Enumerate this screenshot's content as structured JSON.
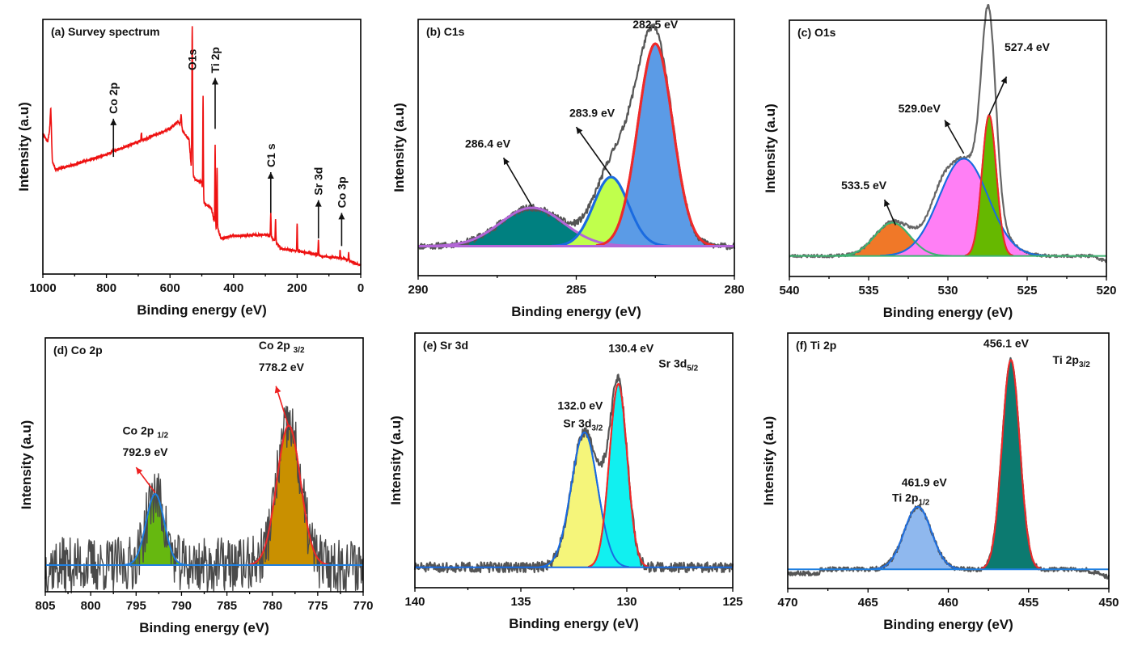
{
  "chart_data": [
    {
      "id": "a",
      "type": "line",
      "title": "(a) Survey spectrum",
      "xlabel": "Binding energy (eV)",
      "ylabel": "Intensity (a.u)",
      "xlim": [
        1000,
        0
      ],
      "ylim": [
        0,
        1
      ],
      "xticks": [
        1000,
        800,
        600,
        400,
        200,
        0
      ],
      "line_color": "#ee1111",
      "baseline_segments": [
        [
          1000,
          0.55
        ],
        [
          985,
          0.52
        ],
        [
          975,
          0.59
        ],
        [
          970,
          0.44
        ],
        [
          960,
          0.41
        ],
        [
          900,
          0.43
        ],
        [
          800,
          0.47
        ],
        [
          700,
          0.52
        ],
        [
          600,
          0.57
        ],
        [
          575,
          0.6
        ],
        [
          560,
          0.56
        ],
        [
          540,
          0.53
        ],
        [
          532,
          0.4
        ],
        [
          520,
          0.37
        ],
        [
          500,
          0.36
        ],
        [
          495,
          0.28
        ],
        [
          470,
          0.26
        ],
        [
          460,
          0.2
        ],
        [
          455,
          0.18
        ],
        [
          450,
          0.18
        ],
        [
          440,
          0.14
        ],
        [
          400,
          0.15
        ],
        [
          300,
          0.155
        ],
        [
          285,
          0.15
        ],
        [
          270,
          0.13
        ],
        [
          250,
          0.1
        ],
        [
          200,
          0.09
        ],
        [
          150,
          0.08
        ],
        [
          120,
          0.07
        ],
        [
          80,
          0.065
        ],
        [
          50,
          0.06
        ],
        [
          30,
          0.05
        ],
        [
          15,
          0.04
        ],
        [
          0,
          0.035
        ]
      ],
      "peaks": [
        {
          "x": 975,
          "height": 0.06,
          "width": 4
        },
        {
          "x": 780,
          "height": 0.01,
          "width": 3
        },
        {
          "x": 690,
          "height": 0.03,
          "width": 2
        },
        {
          "x": 565,
          "height": 0.05,
          "width": 4
        },
        {
          "x": 530,
          "height": 0.58,
          "width": 2.5
        },
        {
          "x": 496,
          "height": 0.4,
          "width": 2
        },
        {
          "x": 458,
          "height": 0.32,
          "width": 2
        },
        {
          "x": 452,
          "height": 0.24,
          "width": 2
        },
        {
          "x": 283,
          "height": 0.09,
          "width": 2
        },
        {
          "x": 268,
          "height": 0.09,
          "width": 2
        },
        {
          "x": 200,
          "height": 0.11,
          "width": 2
        },
        {
          "x": 133,
          "height": 0.06,
          "width": 2
        },
        {
          "x": 65,
          "height": 0.03,
          "width": 2
        },
        {
          "x": 38,
          "height": 0.03,
          "width": 2
        }
      ],
      "markers": [
        {
          "label": "Co 2p",
          "x": 778,
          "y_from": 0.46,
          "y_to": 0.61
        },
        {
          "label": "O1s",
          "x": 530,
          "y_from": null,
          "y_to": null,
          "text_y": 0.99
        },
        {
          "label": "Ti 2p",
          "x": 458,
          "y_from": 0.57,
          "y_to": 0.77
        },
        {
          "label": "C1 s",
          "x": 283,
          "y_from": 0.24,
          "y_to": 0.4
        },
        {
          "label": "Sr 3d",
          "x": 133,
          "y_from": 0.14,
          "y_to": 0.29
        },
        {
          "label": "Co 3p",
          "x": 60,
          "y_from": 0.11,
          "y_to": 0.24
        }
      ]
    },
    {
      "id": "b",
      "type": "area",
      "title": "(b) C1s",
      "xlabel": "Binding energy (eV)",
      "ylabel": "Intensity (a.u)",
      "xlim": [
        290,
        280
      ],
      "ylim": [
        0,
        1
      ],
      "xticks": [
        290,
        285,
        280
      ],
      "baseline": 0.115,
      "baseline_color": "#b266d6",
      "raw_envelope_color": "#555555",
      "components": [
        {
          "label": "286.4 eV",
          "center": 286.4,
          "height": 0.15,
          "sigma": 1.0,
          "fill": "#008080",
          "stroke": "#b266d6"
        },
        {
          "label": "283.9 eV",
          "center": 283.9,
          "height": 0.27,
          "sigma": 0.55,
          "fill": "#c0ff4c",
          "stroke": "#1a6be0"
        },
        {
          "label": "282.5 eV",
          "center": 282.5,
          "height": 0.79,
          "sigma": 0.55,
          "fill": "#5b9be6",
          "stroke": "#ee2a2a"
        }
      ],
      "annotations": [
        {
          "text": "286.4 eV",
          "tx": 287.8,
          "ty": 0.5,
          "ax": 286.4,
          "ay": 0.27,
          "hx": 287.3,
          "hy": 0.46
        },
        {
          "text": "283.9 eV",
          "tx": 284.5,
          "ty": 0.62,
          "ax": 283.9,
          "ay": 0.39,
          "hx": 285.0,
          "hy": 0.58
        },
        {
          "text": "282.5 eV",
          "tx": 282.5,
          "ty": 0.965
        }
      ]
    },
    {
      "id": "c",
      "type": "area",
      "title": "(c) O1s",
      "xlabel": "Binding energy (eV)",
      "ylabel": "Intensity (a.u)",
      "xlim": [
        540,
        520
      ],
      "ylim": [
        0,
        1
      ],
      "xticks": [
        540,
        535,
        530,
        525,
        520
      ],
      "baseline": 0.08,
      "baseline_color": "#3cb371",
      "raw_envelope_color": "#666666",
      "components": [
        {
          "label": "533.5 eV",
          "center": 533.5,
          "height": 0.13,
          "sigma": 1.1,
          "fill": "#f07828",
          "stroke": "#3cb371"
        },
        {
          "label": "529.0eV",
          "center": 529.0,
          "height": 0.38,
          "sigma": 1.55,
          "fill": "#ff7ff5",
          "stroke": "#1a6be0"
        },
        {
          "label": "527.4 eV",
          "center": 527.4,
          "height": 0.55,
          "sigma": 0.45,
          "fill": "#66b800",
          "stroke": "#ee2a2a"
        }
      ],
      "annotations": [
        {
          "text": "533.5 eV",
          "tx": 535.3,
          "ty": 0.34,
          "ax": 533.3,
          "ay": 0.2,
          "hx": 534.0,
          "hy": 0.3
        },
        {
          "text": "529.0eV",
          "tx": 531.8,
          "ty": 0.64,
          "ax": 529.0,
          "ay": 0.48,
          "hx": 530.2,
          "hy": 0.61
        },
        {
          "text": "527.4 eV",
          "tx": 525.0,
          "ty": 0.88,
          "ax": 527.4,
          "ay": 0.63,
          "hx": 526.3,
          "hy": 0.78
        }
      ]
    },
    {
      "id": "d",
      "type": "area",
      "title": "(d) Co 2p",
      "xlabel": "Binding energy (eV)",
      "ylabel": "Intensity (a.u)",
      "xlim": [
        805,
        770
      ],
      "ylim": [
        0,
        1
      ],
      "xticks": [
        805,
        800,
        795,
        790,
        785,
        780,
        775,
        770
      ],
      "baseline": 0.105,
      "baseline_color": "#1f7fe0",
      "raw_envelope_color": "#4a4a4a",
      "components": [
        {
          "label": "Co 2p1/2 792.9 eV",
          "center": 792.9,
          "height": 0.28,
          "sigma": 1.0,
          "fill": "#66b810",
          "stroke": "#1f7fe0"
        },
        {
          "label": "Co 2p3/2 778.2 eV",
          "center": 778.2,
          "height": 0.55,
          "sigma": 1.3,
          "fill": "#c99000",
          "stroke": "#ee2a2a"
        }
      ],
      "annotations": [
        {
          "main": "Co 2p",
          "sub": "1/2",
          "value": "792.9 eV",
          "tx": 796.5,
          "ty": 0.62,
          "ty2": 0.535,
          "ax": 792.9,
          "ay": 0.39,
          "hx": 795.0,
          "hy": 0.49,
          "arrow_color": "#ee2020"
        },
        {
          "main": "Co 2p",
          "sub": "3/2",
          "value": "778.2 eV",
          "tx": 781.5,
          "ty": 0.955,
          "ty2": 0.87,
          "ax": 778.2,
          "ay": 0.65,
          "hx": 779.6,
          "hy": 0.81,
          "arrow_color": "#ee2020"
        }
      ]
    },
    {
      "id": "e",
      "type": "area",
      "title": "(e) Sr 3d",
      "xlabel": "Binding energy (eV)",
      "ylabel": "Intensity (a.u)",
      "xlim": [
        140,
        125
      ],
      "ylim": [
        0,
        1
      ],
      "xticks": [
        140,
        135,
        130,
        125
      ],
      "baseline": 0.08,
      "baseline_color": "#1a6be0",
      "raw_envelope_color": "#555555",
      "components": [
        {
          "label": "132.0 eV Sr 3d3/2",
          "center": 132.0,
          "height": 0.53,
          "sigma": 0.62,
          "fill": "#f5f57a",
          "stroke": "#1a6be0"
        },
        {
          "label": "130.4 eV Sr 3d5/2",
          "center": 130.4,
          "height": 0.72,
          "sigma": 0.42,
          "fill": "#11f0f0",
          "stroke": "#ee2a2a"
        }
      ],
      "annotations": [
        {
          "value": "132.0 eV",
          "main": "Sr 3d",
          "sub": "3/2",
          "vx": 132.2,
          "vy": 0.7,
          "lx": 133.0,
          "ly": 0.63
        },
        {
          "value": "130.4 eV",
          "main": "Sr 3d",
          "sub": "5/2",
          "vx": 129.8,
          "vy": 0.925,
          "lx": 128.5,
          "ly": 0.865
        }
      ]
    },
    {
      "id": "f",
      "type": "area",
      "title": "(f) Ti 2p",
      "xlabel": "Binding energy (eV)",
      "ylabel": "Intensity (a.u)",
      "xlim": [
        470,
        450
      ],
      "ylim": [
        0,
        1
      ],
      "xticks": [
        470,
        465,
        460,
        455,
        450
      ],
      "baseline": 0.075,
      "baseline_color": "#1f7fe0",
      "raw_envelope_color": "#555555",
      "components": [
        {
          "label": "461.9 eV Ti 2p1/2",
          "center": 461.9,
          "height": 0.245,
          "sigma": 0.85,
          "fill": "#8fb8ee",
          "stroke": "#1f6fe0"
        },
        {
          "label": "456.1 eV Ti 2p3/2",
          "center": 456.1,
          "height": 0.82,
          "sigma": 0.55,
          "fill": "#0c7a70",
          "stroke": "#ee2a2a"
        }
      ],
      "annotations": [
        {
          "value": "461.9 eV",
          "main": "Ti 2p",
          "sub": "1/2",
          "vx": 461.5,
          "vy": 0.4,
          "lx": 463.5,
          "ly": 0.34
        },
        {
          "value": "456.1 eV",
          "main": "Ti 2p",
          "sub": "3/2",
          "vx": 456.4,
          "vy": 0.945,
          "lx": 453.5,
          "ly": 0.88
        }
      ]
    }
  ]
}
